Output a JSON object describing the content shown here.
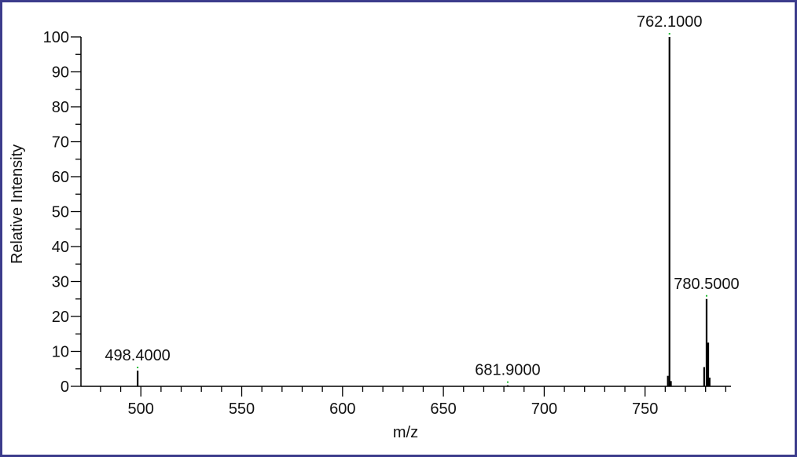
{
  "chart_data": {
    "type": "bar",
    "xlabel": "m/z",
    "ylabel": "Relative Intensity",
    "xlim": [
      470,
      790
    ],
    "ylim": [
      0,
      100
    ],
    "x_ticks": [
      "500",
      "550",
      "600",
      "650",
      "700",
      "750"
    ],
    "y_ticks": [
      "0",
      "10",
      "20",
      "30",
      "40",
      "50",
      "60",
      "70",
      "80",
      "90",
      "100"
    ],
    "peaks": [
      {
        "mz": 498.4,
        "intensity": 4.5
      },
      {
        "mz": 681.9,
        "intensity": 0.3
      },
      {
        "mz": 761.3,
        "intensity": 3
      },
      {
        "mz": 762.1,
        "intensity": 100
      },
      {
        "mz": 762.8,
        "intensity": 1.5
      },
      {
        "mz": 779.3,
        "intensity": 5.5
      },
      {
        "mz": 780.5,
        "intensity": 25
      },
      {
        "mz": 781.3,
        "intensity": 12.5
      },
      {
        "mz": 782.0,
        "intensity": 2.5
      }
    ],
    "annotations": [
      "498.4000",
      "681.9000",
      "762.1000",
      "780.5000"
    ],
    "colors": {
      "peak": "#000000",
      "label_marker": "#22bb33",
      "frame": "#3c3c8c"
    }
  }
}
